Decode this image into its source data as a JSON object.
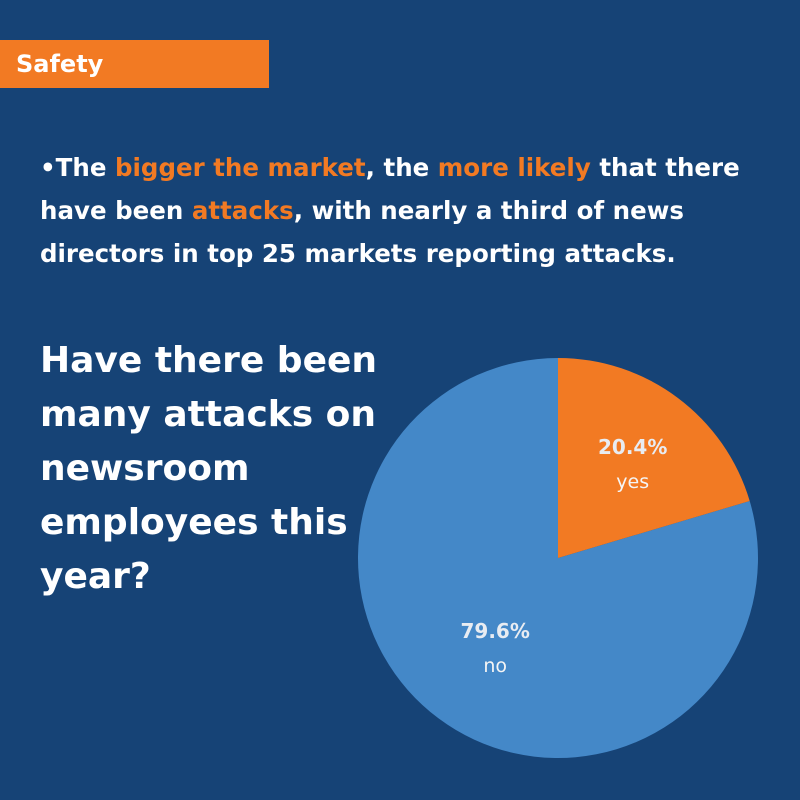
{
  "header": {
    "tag": "Safety"
  },
  "bullet": {
    "marker": "•",
    "segments": [
      {
        "text": "The ",
        "highlight": false
      },
      {
        "text": "bigger the market",
        "highlight": true
      },
      {
        "text": ", the ",
        "highlight": false
      },
      {
        "text": "more likely",
        "highlight": true
      },
      {
        "text": " that there have been ",
        "highlight": false
      },
      {
        "text": "attacks",
        "highlight": true
      },
      {
        "text": ", with nearly a third of news directors in top 25 markets reporting attacks.",
        "highlight": false
      }
    ]
  },
  "colors": {
    "background": "#164376",
    "accent": "#f27a23",
    "pie_no": "#4488c8",
    "pie_yes": "#f27a23"
  },
  "chart_data": {
    "type": "pie",
    "title": "Have there been many attacks on newsroom employees this year?",
    "slices": [
      {
        "label": "yes",
        "value": 20.4,
        "value_text": "20.4%"
      },
      {
        "label": "no",
        "value": 79.6,
        "value_text": "79.6%"
      }
    ]
  }
}
